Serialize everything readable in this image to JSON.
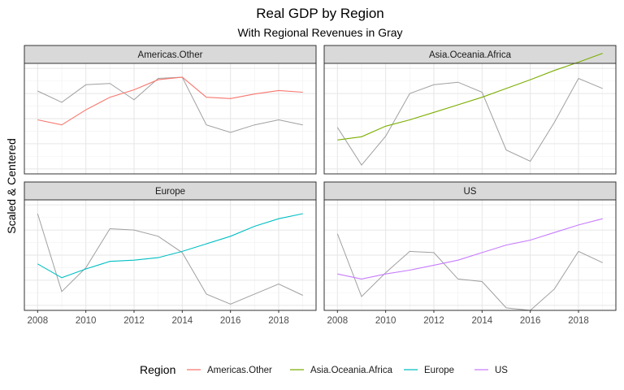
{
  "chart_data": {
    "type": "line",
    "title": "Real GDP by Region",
    "subtitle": "With Regional Revenues in Gray",
    "ylabel": "Scaled & Centered",
    "xlabel": "",
    "x": [
      2008,
      2009,
      2010,
      2011,
      2012,
      2013,
      2014,
      2015,
      2016,
      2017,
      2018,
      2019
    ],
    "xticks": [
      2008,
      2010,
      2012,
      2014,
      2016,
      2018
    ],
    "ylim": [
      -2.2,
      2.2
    ],
    "grid": true,
    "legend": {
      "title": "Region",
      "position": "bottom"
    },
    "facets": [
      {
        "name": "Americas.Other",
        "color": "#F8766D",
        "gdp": [
          -0.05,
          -0.25,
          0.35,
          0.85,
          1.15,
          1.55,
          1.65,
          0.85,
          0.8,
          0.98,
          1.12,
          1.05
        ],
        "revenue": [
          1.1,
          0.65,
          1.35,
          1.4,
          0.75,
          1.6,
          1.65,
          -0.25,
          -0.55,
          -0.25,
          -0.05,
          -0.25
        ]
      },
      {
        "name": "Asia.Oceania.Africa",
        "color": "#7CAE00",
        "gdp": [
          -0.85,
          -0.72,
          -0.3,
          -0.05,
          0.25,
          0.55,
          0.85,
          1.2,
          1.55,
          1.92,
          2.25,
          2.6
        ],
        "revenue": [
          -0.35,
          -1.85,
          -0.7,
          1.0,
          1.35,
          1.45,
          1.05,
          -1.25,
          -1.7,
          -0.15,
          1.6,
          1.2
        ]
      },
      {
        "name": "Europe",
        "color": "#00BFC4",
        "gdp": [
          -0.35,
          -0.9,
          -0.55,
          -0.25,
          -0.2,
          -0.1,
          0.15,
          0.45,
          0.75,
          1.15,
          1.45,
          1.65
        ],
        "revenue": [
          1.65,
          -1.45,
          -0.5,
          1.05,
          1.0,
          0.75,
          0.1,
          -1.55,
          -1.95,
          -1.55,
          -1.15,
          -1.6
        ]
      },
      {
        "name": "US",
        "color": "#C77CFF",
        "gdp": [
          -0.75,
          -0.95,
          -0.75,
          -0.6,
          -0.4,
          -0.2,
          0.1,
          0.4,
          0.6,
          0.9,
          1.2,
          1.45
        ],
        "revenue": [
          0.85,
          -1.65,
          -0.7,
          0.15,
          0.1,
          -0.95,
          -1.05,
          -2.1,
          -2.2,
          -1.35,
          0.15,
          -0.3
        ]
      }
    ]
  }
}
